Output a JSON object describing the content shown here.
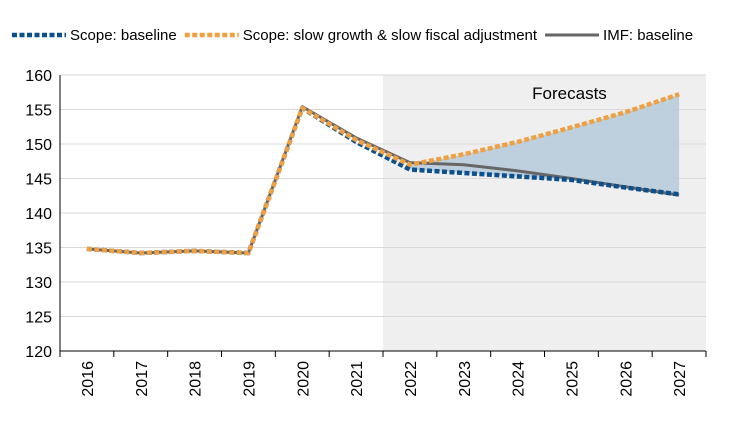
{
  "chart_data": {
    "type": "line",
    "title": "",
    "xlabel": "",
    "ylabel": "",
    "categories": [
      "2016",
      "2017",
      "2018",
      "2019",
      "2020",
      "2021",
      "2022",
      "2023",
      "2024",
      "2025",
      "2026",
      "2027"
    ],
    "ylim": [
      120,
      160
    ],
    "yticks": [
      120,
      125,
      130,
      135,
      140,
      145,
      150,
      155,
      160
    ],
    "grid": "horizontal",
    "legend_position": "top",
    "forecast_region": {
      "label": "Forecasts",
      "start": "2022",
      "end": "2027",
      "color": "#efefef"
    },
    "band": {
      "from_series": "Scope: baseline",
      "to_series": "Scope: slow growth & slow fiscal adjustment",
      "start": "2022",
      "color": "#b8ccdb"
    },
    "series": [
      {
        "name": "Scope: baseline",
        "color": "#0b4f8c",
        "style": "dashed",
        "values": [
          134.8,
          134.2,
          134.5,
          134.2,
          155.2,
          150.3,
          146.3,
          145.8,
          145.3,
          144.8,
          143.7,
          142.7
        ]
      },
      {
        "name": "Scope: slow growth & slow fiscal adjustment",
        "color": "#f0a040",
        "style": "dashed",
        "values": [
          134.8,
          134.2,
          134.5,
          134.2,
          155.2,
          150.6,
          147.0,
          148.5,
          150.3,
          152.4,
          154.6,
          157.2
        ]
      },
      {
        "name": "IMF: baseline",
        "color": "#666666",
        "style": "solid",
        "values": [
          134.8,
          134.2,
          134.5,
          134.2,
          155.4,
          150.9,
          147.3,
          147.0,
          146.1,
          145.0,
          143.8,
          142.6
        ]
      }
    ]
  }
}
